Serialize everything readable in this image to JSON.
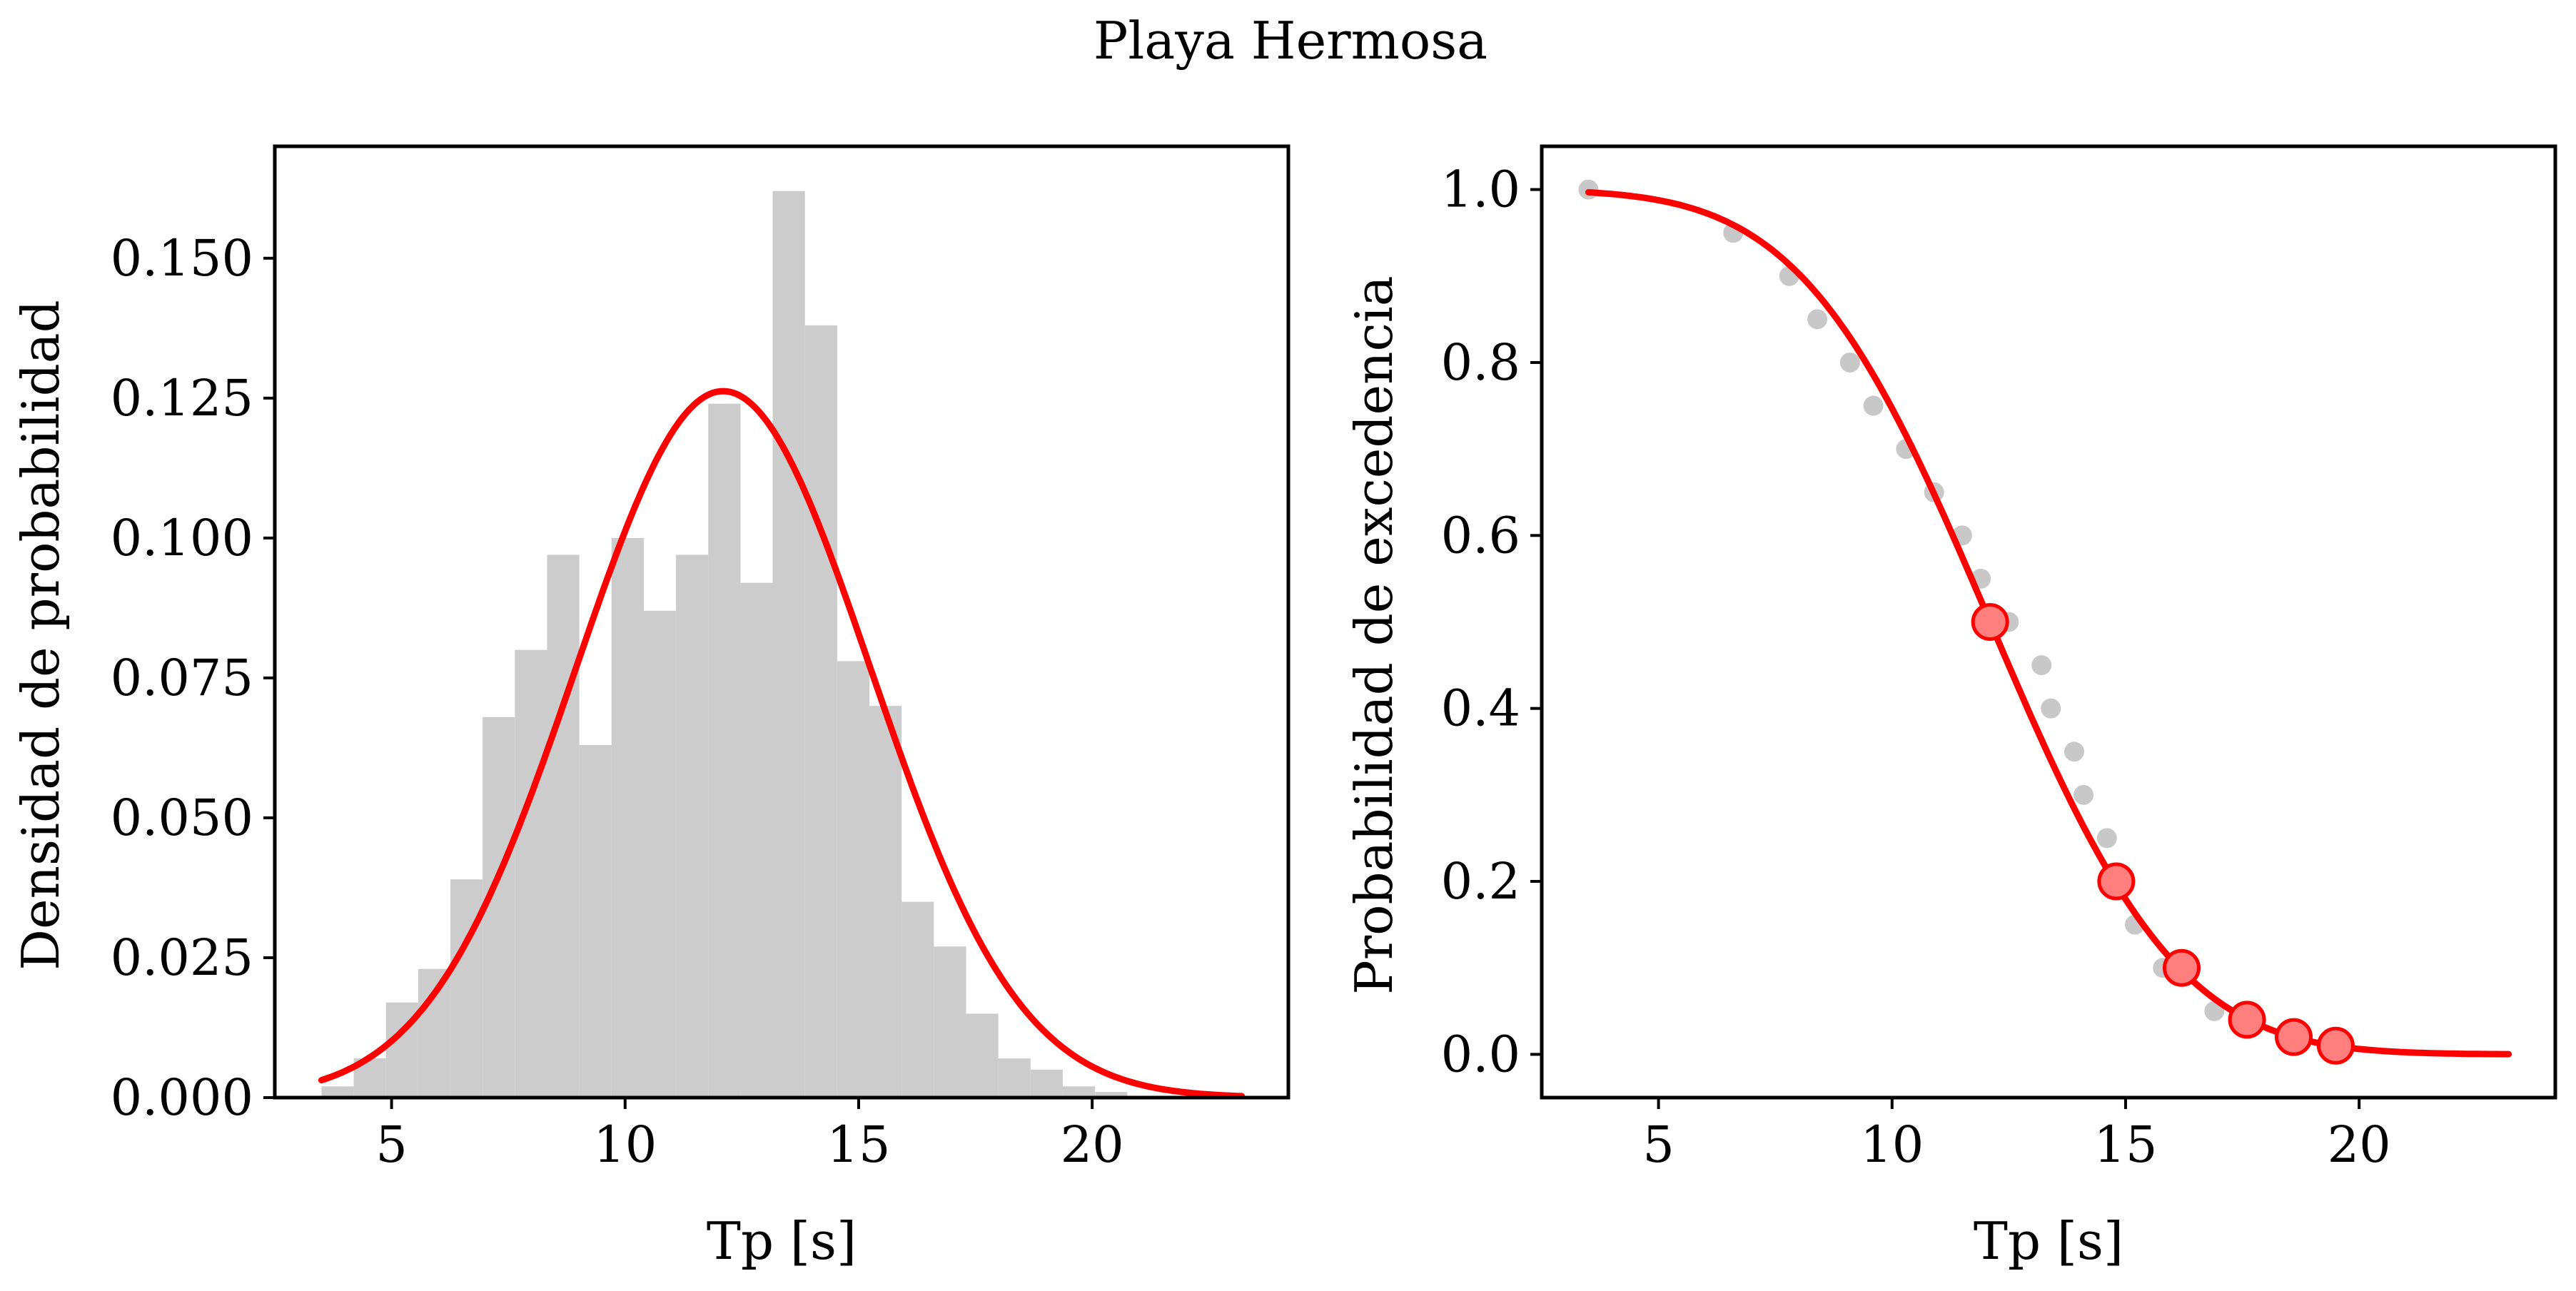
{
  "figure": {
    "title": "Playa Hermosa"
  },
  "colors": {
    "histogram_bars": "#cccccc",
    "fit_curve": "#ff0000",
    "empirical_points": "#c8c8c8",
    "highlight_fill": "#ff7f7f",
    "highlight_edge": "#ff0000",
    "axes": "#000000"
  },
  "chart_data": [
    {
      "type": "bar",
      "name": "histogram",
      "title": "",
      "xlabel": "Tp [s]",
      "ylabel": "Densidad de probabilidad",
      "xlim": [
        2.5,
        24.2
      ],
      "ylim": [
        0,
        0.17
      ],
      "xticks": [
        5,
        10,
        15,
        20
      ],
      "xtick_labels": [
        "5",
        "10",
        "15",
        "20"
      ],
      "yticks": [
        0,
        0.025,
        0.05,
        0.075,
        0.1,
        0.125,
        0.15
      ],
      "ytick_labels": [
        "0.000",
        "0.025",
        "0.050",
        "0.075",
        "0.100",
        "0.125",
        "0.150"
      ],
      "grid": false,
      "bin_edges": [
        3.5,
        4.19,
        4.88,
        5.57,
        6.26,
        6.95,
        7.64,
        8.33,
        9.02,
        9.71,
        10.4,
        11.09,
        11.78,
        12.47,
        13.16,
        13.85,
        14.54,
        15.23,
        15.92,
        16.61,
        17.3,
        17.99,
        18.68,
        19.37,
        20.06,
        20.75
      ],
      "values": [
        0.002,
        0.007,
        0.017,
        0.023,
        0.039,
        0.068,
        0.08,
        0.097,
        0.063,
        0.1,
        0.087,
        0.097,
        0.124,
        0.092,
        0.162,
        0.138,
        0.078,
        0.07,
        0.035,
        0.027,
        0.015,
        0.007,
        0.005,
        0.002,
        0.001
      ],
      "curve": {
        "kind": "normal pdf",
        "mean": 12.1,
        "std": 3.16,
        "x_range": [
          3.5,
          23.2
        ]
      }
    },
    {
      "type": "scatter",
      "name": "exceedance",
      "title": "",
      "xlabel": "Tp [s]",
      "ylabel": "Probabilidad de excedencia",
      "xlim": [
        2.5,
        24.2
      ],
      "ylim": [
        -0.05,
        1.05
      ],
      "xticks": [
        5,
        10,
        15,
        20
      ],
      "xtick_labels": [
        "5",
        "10",
        "15",
        "20"
      ],
      "yticks": [
        0,
        0.2,
        0.4,
        0.6,
        0.8,
        1.0
      ],
      "ytick_labels": [
        "0.0",
        "0.2",
        "0.4",
        "0.6",
        "0.8",
        "1.0"
      ],
      "grid": false,
      "empirical_points": {
        "x": [
          3.5,
          6.6,
          7.8,
          8.4,
          9.1,
          9.6,
          10.3,
          10.9,
          11.5,
          11.9,
          12.5,
          13.2,
          13.4,
          13.9,
          14.1,
          14.6,
          15.2,
          15.8,
          16.9,
          17.5,
          18.4,
          19.3
        ],
        "y": [
          1.0,
          0.95,
          0.9,
          0.85,
          0.8,
          0.75,
          0.7,
          0.65,
          0.6,
          0.55,
          0.5,
          0.45,
          0.4,
          0.35,
          0.3,
          0.25,
          0.15,
          0.1,
          0.05,
          0.04,
          0.02,
          0.01
        ]
      },
      "highlight_points": {
        "x": [
          12.1,
          14.8,
          16.2,
          17.6,
          18.6,
          19.5
        ],
        "y": [
          0.5,
          0.2,
          0.1,
          0.04,
          0.02,
          0.01
        ]
      },
      "curve": {
        "kind": "normal survival function",
        "mean": 12.1,
        "std": 3.16,
        "x_range": [
          3.5,
          23.2
        ]
      }
    }
  ]
}
